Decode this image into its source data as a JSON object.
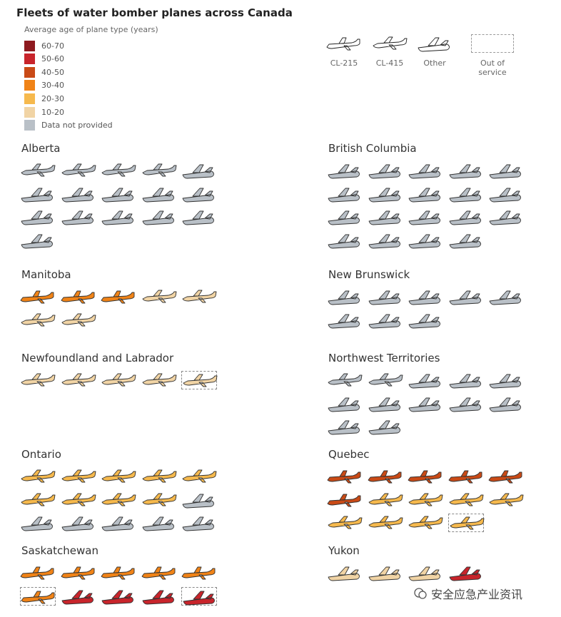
{
  "chart_data": {
    "type": "pictogram",
    "title": "Fleets of water bomber planes across Canada",
    "legend": {
      "title": "Average age of plane type (years)",
      "age_bins": [
        {
          "label": "60-70",
          "color": "#8e1a1f"
        },
        {
          "label": "50-60",
          "color": "#c8242b"
        },
        {
          "label": "40-50",
          "color": "#c94a16"
        },
        {
          "label": "30-40",
          "color": "#f08317"
        },
        {
          "label": "20-30",
          "color": "#f6b94d"
        },
        {
          "label": "10-20",
          "color": "#f1d4a5"
        },
        {
          "label": "Data not provided",
          "color": "#b9c0c7"
        }
      ],
      "types": [
        {
          "key": "cl215",
          "label": "CL-215"
        },
        {
          "key": "cl415",
          "label": "CL-415"
        },
        {
          "key": "other",
          "label": "Other"
        },
        {
          "key": "oos",
          "label": "Out of service"
        }
      ]
    },
    "colors": {
      "60-70": "#8e1a1f",
      "50-60": "#c8242b",
      "40-50": "#c94a16",
      "30-40": "#f08317",
      "20-30": "#f6b94d",
      "10-20": "#f1d4a5",
      "na": "#b9c0c7"
    },
    "provinces": [
      {
        "name": "Alberta",
        "planes": [
          {
            "type": "cl415",
            "age": "na"
          },
          {
            "type": "cl415",
            "age": "na"
          },
          {
            "type": "cl415",
            "age": "na"
          },
          {
            "type": "cl415",
            "age": "na"
          },
          {
            "type": "other",
            "age": "na"
          },
          {
            "type": "other",
            "age": "na"
          },
          {
            "type": "other",
            "age": "na"
          },
          {
            "type": "other",
            "age": "na"
          },
          {
            "type": "other",
            "age": "na"
          },
          {
            "type": "other",
            "age": "na"
          },
          {
            "type": "other",
            "age": "na"
          },
          {
            "type": "other",
            "age": "na"
          },
          {
            "type": "other",
            "age": "na"
          },
          {
            "type": "other",
            "age": "na"
          },
          {
            "type": "other",
            "age": "na"
          },
          {
            "type": "other",
            "age": "na"
          }
        ]
      },
      {
        "name": "British Columbia",
        "planes": [
          {
            "type": "other",
            "age": "na"
          },
          {
            "type": "other",
            "age": "na"
          },
          {
            "type": "other",
            "age": "na"
          },
          {
            "type": "other",
            "age": "na"
          },
          {
            "type": "other",
            "age": "na"
          },
          {
            "type": "other",
            "age": "na"
          },
          {
            "type": "other",
            "age": "na"
          },
          {
            "type": "other",
            "age": "na"
          },
          {
            "type": "other",
            "age": "na"
          },
          {
            "type": "other",
            "age": "na"
          },
          {
            "type": "other",
            "age": "na"
          },
          {
            "type": "other",
            "age": "na"
          },
          {
            "type": "other",
            "age": "na"
          },
          {
            "type": "other",
            "age": "na"
          },
          {
            "type": "other",
            "age": "na"
          },
          {
            "type": "other",
            "age": "na"
          },
          {
            "type": "other",
            "age": "na"
          },
          {
            "type": "other",
            "age": "na"
          },
          {
            "type": "other",
            "age": "na"
          }
        ]
      },
      {
        "name": "Manitoba",
        "planes": [
          {
            "type": "cl215",
            "age": "30-40"
          },
          {
            "type": "cl215",
            "age": "30-40"
          },
          {
            "type": "cl215",
            "age": "30-40"
          },
          {
            "type": "cl415",
            "age": "10-20"
          },
          {
            "type": "cl415",
            "age": "10-20"
          },
          {
            "type": "cl415",
            "age": "10-20"
          },
          {
            "type": "cl415",
            "age": "10-20"
          }
        ]
      },
      {
        "name": "New Brunswick",
        "planes": [
          {
            "type": "other",
            "age": "na"
          },
          {
            "type": "other",
            "age": "na"
          },
          {
            "type": "other",
            "age": "na"
          },
          {
            "type": "other",
            "age": "na"
          },
          {
            "type": "other",
            "age": "na"
          },
          {
            "type": "other",
            "age": "na"
          },
          {
            "type": "other",
            "age": "na"
          },
          {
            "type": "other",
            "age": "na"
          }
        ]
      },
      {
        "name": "Newfoundland and Labrador",
        "planes": [
          {
            "type": "cl415",
            "age": "10-20"
          },
          {
            "type": "cl415",
            "age": "10-20"
          },
          {
            "type": "cl415",
            "age": "10-20"
          },
          {
            "type": "cl415",
            "age": "10-20"
          },
          {
            "type": "cl415",
            "age": "10-20",
            "oos": true
          }
        ]
      },
      {
        "name": "Northwest Territories",
        "planes": [
          {
            "type": "cl415",
            "age": "na"
          },
          {
            "type": "cl415",
            "age": "na"
          },
          {
            "type": "other",
            "age": "na"
          },
          {
            "type": "other",
            "age": "na"
          },
          {
            "type": "other",
            "age": "na"
          },
          {
            "type": "other",
            "age": "na"
          },
          {
            "type": "other",
            "age": "na"
          },
          {
            "type": "other",
            "age": "na"
          },
          {
            "type": "other",
            "age": "na"
          },
          {
            "type": "other",
            "age": "na"
          },
          {
            "type": "other",
            "age": "na"
          },
          {
            "type": "other",
            "age": "na"
          }
        ]
      },
      {
        "name": "Ontario",
        "planes": [
          {
            "type": "cl415",
            "age": "20-30"
          },
          {
            "type": "cl415",
            "age": "20-30"
          },
          {
            "type": "cl415",
            "age": "20-30"
          },
          {
            "type": "cl415",
            "age": "20-30"
          },
          {
            "type": "cl415",
            "age": "20-30"
          },
          {
            "type": "cl415",
            "age": "20-30"
          },
          {
            "type": "cl415",
            "age": "20-30"
          },
          {
            "type": "cl415",
            "age": "20-30"
          },
          {
            "type": "cl415",
            "age": "20-30"
          },
          {
            "type": "other",
            "age": "na"
          },
          {
            "type": "other",
            "age": "na"
          },
          {
            "type": "other",
            "age": "na"
          },
          {
            "type": "other",
            "age": "na"
          },
          {
            "type": "other",
            "age": "na"
          },
          {
            "type": "other",
            "age": "na"
          }
        ]
      },
      {
        "name": "Quebec",
        "planes": [
          {
            "type": "cl215",
            "age": "40-50"
          },
          {
            "type": "cl215",
            "age": "40-50"
          },
          {
            "type": "cl215",
            "age": "40-50"
          },
          {
            "type": "cl215",
            "age": "40-50"
          },
          {
            "type": "cl215",
            "age": "40-50"
          },
          {
            "type": "cl215",
            "age": "40-50"
          },
          {
            "type": "cl415",
            "age": "20-30"
          },
          {
            "type": "cl415",
            "age": "20-30"
          },
          {
            "type": "cl415",
            "age": "20-30"
          },
          {
            "type": "cl415",
            "age": "20-30"
          },
          {
            "type": "cl415",
            "age": "20-30"
          },
          {
            "type": "cl415",
            "age": "20-30"
          },
          {
            "type": "cl415",
            "age": "20-30"
          },
          {
            "type": "cl415",
            "age": "20-30",
            "oos": true
          }
        ]
      },
      {
        "name": "Saskatchewan",
        "planes": [
          {
            "type": "cl215",
            "age": "30-40"
          },
          {
            "type": "cl215",
            "age": "30-40"
          },
          {
            "type": "cl215",
            "age": "30-40"
          },
          {
            "type": "cl215",
            "age": "30-40"
          },
          {
            "type": "cl215",
            "age": "30-40"
          },
          {
            "type": "cl215",
            "age": "30-40",
            "oos": true
          },
          {
            "type": "other",
            "age": "50-60"
          },
          {
            "type": "other",
            "age": "50-60"
          },
          {
            "type": "other",
            "age": "50-60"
          },
          {
            "type": "other",
            "age": "50-60",
            "oos": true
          }
        ]
      },
      {
        "name": "Yukon",
        "planes": [
          {
            "type": "other",
            "age": "10-20"
          },
          {
            "type": "other",
            "age": "10-20"
          },
          {
            "type": "other",
            "age": "10-20"
          },
          {
            "type": "other",
            "age": "50-60"
          }
        ]
      }
    ]
  },
  "watermark": "安全应急产业资讯"
}
